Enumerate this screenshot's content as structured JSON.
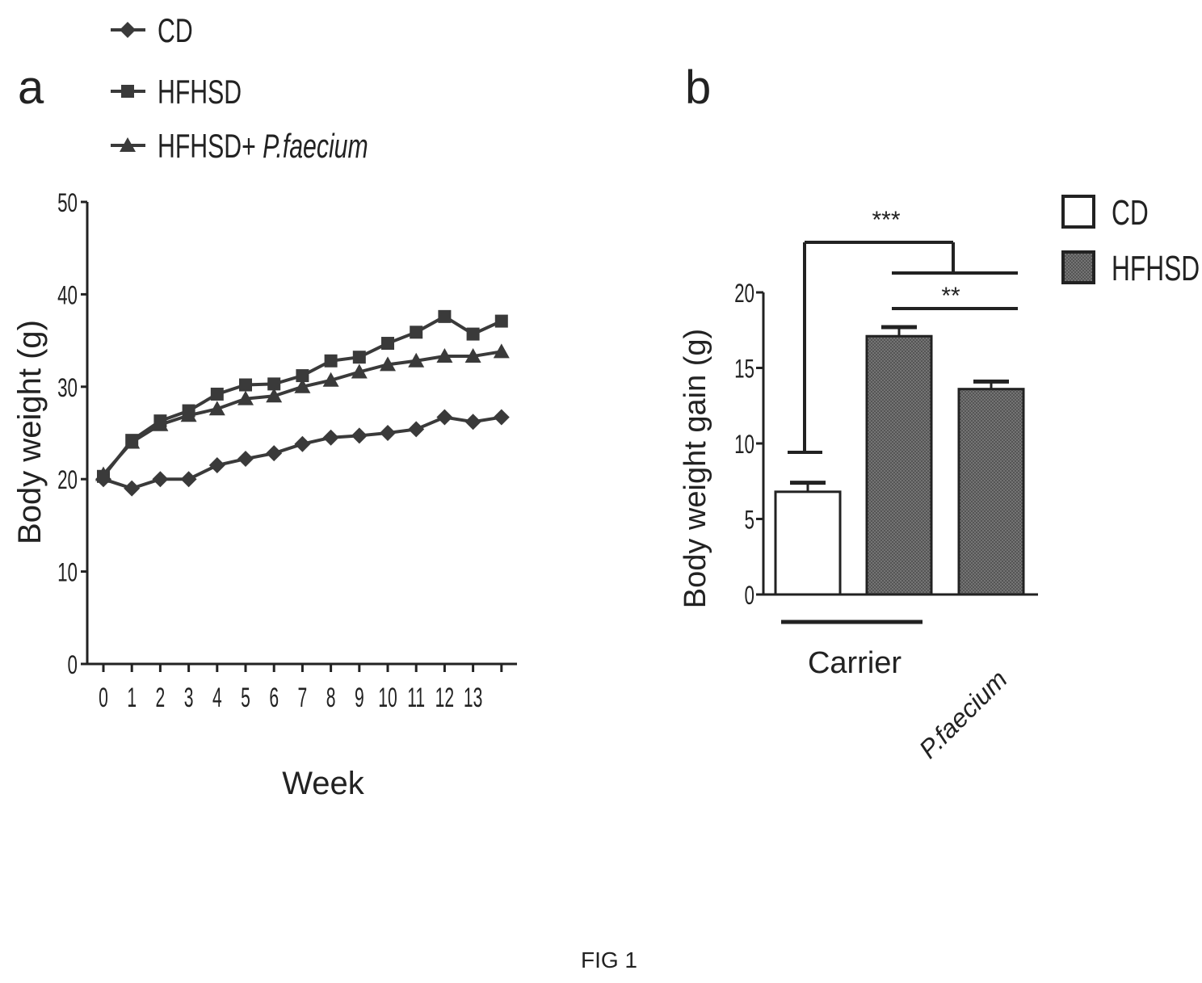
{
  "figure_caption": "FIG 1",
  "chart_data": [
    {
      "panel_label": "a",
      "type": "line",
      "xlabel": "Week",
      "ylabel": "Body weight (g)",
      "ylim": [
        0,
        50
      ],
      "yticks": [
        0,
        10,
        20,
        30,
        40,
        50
      ],
      "xticks": [
        "0",
        "1",
        "2",
        "3",
        "4",
        "5",
        "6",
        "7",
        "8",
        "9",
        "10",
        "11",
        "12",
        "13"
      ],
      "x": [
        0,
        1,
        2,
        3,
        4,
        5,
        6,
        7,
        8,
        9,
        10,
        11,
        12,
        13,
        14
      ],
      "legend_position": "top",
      "series": [
        {
          "name": "CD",
          "marker": "diamond",
          "values": [
            20,
            19,
            20,
            20,
            21.5,
            22.2,
            22.8,
            23.8,
            24.5,
            24.7,
            25,
            25.4,
            26.7,
            26.2,
            26.7
          ]
        },
        {
          "name": "HFHSD",
          "marker": "square",
          "values": [
            20.3,
            24.2,
            26.3,
            27.4,
            29.2,
            30.2,
            30.3,
            31.2,
            32.8,
            33.2,
            34.7,
            35.9,
            37.6,
            35.7,
            37.1
          ]
        },
        {
          "name": "HFHSD+ ",
          "name_italic": "P.faecium",
          "marker": "triangle",
          "values": [
            20.5,
            24,
            25.9,
            26.9,
            27.6,
            28.7,
            29,
            30,
            30.7,
            31.6,
            32.4,
            32.8,
            33.3,
            33.3,
            33.8
          ]
        }
      ]
    },
    {
      "panel_label": "b",
      "type": "bar",
      "ylabel": "Body weight gain (g)",
      "ylim": [
        0,
        20
      ],
      "yticks": [
        0,
        5,
        10,
        15,
        20
      ],
      "categories": [
        "CD",
        "HFHSD",
        "HFHSD"
      ],
      "values": [
        6.8,
        17.1,
        13.6
      ],
      "errors": [
        0.6,
        0.6,
        0.5
      ],
      "group_labels": {
        "carrier": "Carrier",
        "treated": "P.faecium"
      },
      "legend_position": "top-right",
      "legend": [
        {
          "name": "CD",
          "fill": "#ffffff"
        },
        {
          "name": "HFHSD",
          "fill": "#6f6f6f"
        }
      ],
      "significance": [
        {
          "label": "***",
          "between": "CD vs HFHSD groups"
        },
        {
          "label": "**",
          "between": "HFHSD vs HFHSD+P.faecium"
        }
      ]
    }
  ]
}
